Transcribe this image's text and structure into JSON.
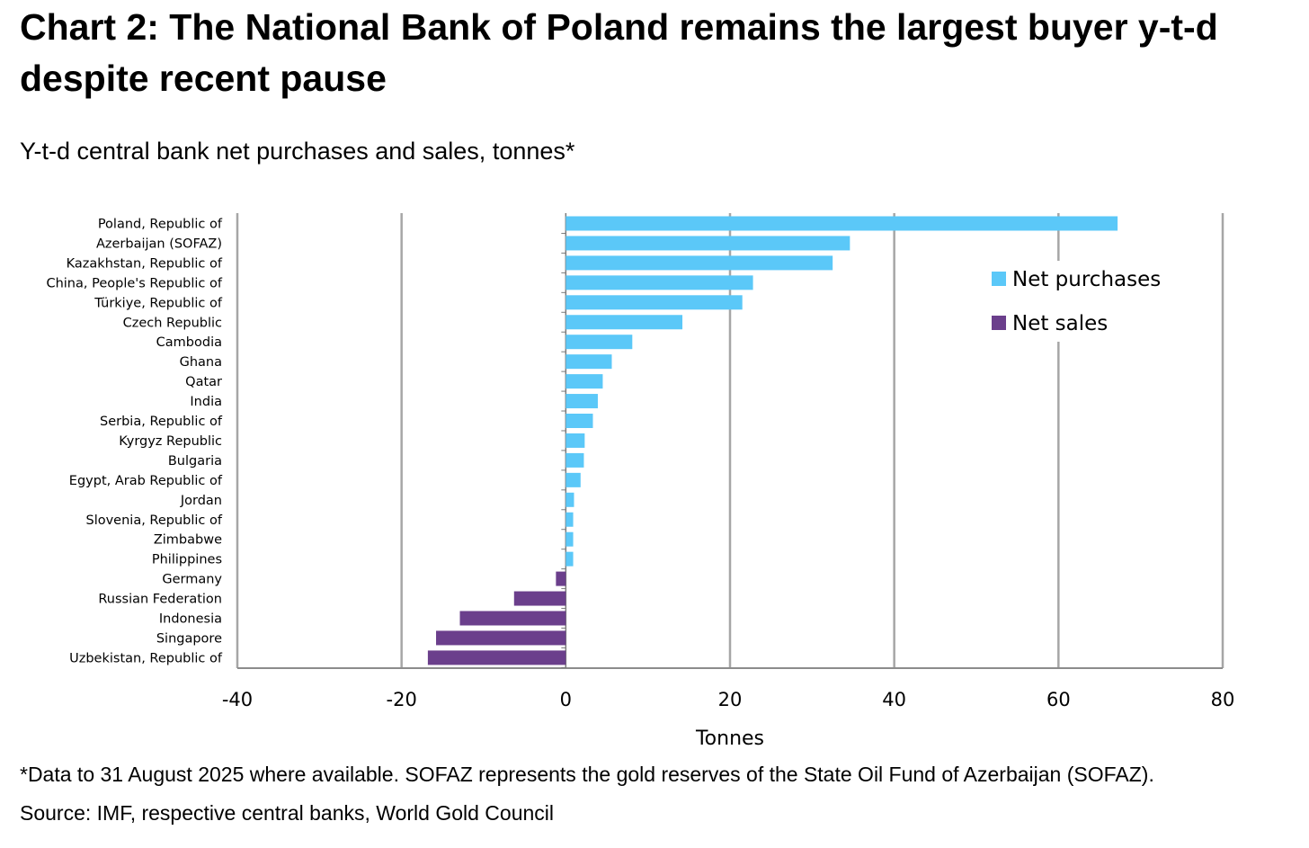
{
  "header": {
    "title": "Chart 2: The National Bank of Poland remains the largest buyer y-t-d despite recent pause",
    "subtitle": "Y-t-d central bank net purchases and sales, tonnes*"
  },
  "footer": {
    "footnote": "*Data to 31 August 2025 where available. SOFAZ represents the gold reserves of the State Oil Fund of Azerbaijan (SOFAZ).",
    "source": "Source: IMF, respective central banks, World Gold Council"
  },
  "colors": {
    "purchases": "#5bc8f8",
    "sales": "#6b3f8c",
    "gridline": "#a6a6a6",
    "axis": "#8c8c8c"
  },
  "chart_data": {
    "type": "bar",
    "orientation": "horizontal",
    "title": "Chart 2: The National Bank of Poland remains the largest buyer y-t-d despite recent pause",
    "subtitle": "Y-t-d central bank net purchases and sales, tonnes*",
    "xlabel": "Tonnes",
    "ylabel": "",
    "xlim": [
      -40,
      80
    ],
    "xticks": [
      -40,
      -20,
      0,
      20,
      40,
      60,
      80
    ],
    "grid": true,
    "legend_position": "top-right",
    "categories": [
      "Poland, Republic of",
      "Azerbaijan (SOFAZ)",
      "Kazakhstan, Republic of",
      "China, People's Republic of",
      "Türkiye, Republic of",
      "Czech Republic",
      "Cambodia",
      "Ghana",
      "Qatar",
      "India",
      "Serbia, Republic of",
      "Kyrgyz Republic",
      "Bulgaria",
      "Egypt, Arab Republic of",
      "Jordan",
      "Slovenia, Republic of",
      "Zimbabwe",
      "Philippines",
      "Germany",
      "Russian Federation",
      "Indonesia",
      "Singapore",
      "Uzbekistan, Republic of"
    ],
    "values": [
      67.2,
      34.6,
      32.5,
      22.8,
      21.5,
      14.2,
      8.1,
      5.6,
      4.5,
      3.9,
      3.3,
      2.3,
      2.2,
      1.8,
      1.0,
      0.9,
      0.9,
      0.9,
      -1.2,
      -6.3,
      -12.9,
      -15.8,
      -16.8
    ],
    "series": [
      {
        "name": "Net purchases",
        "color_key": "purchases"
      },
      {
        "name": "Net sales",
        "color_key": "sales"
      }
    ]
  }
}
